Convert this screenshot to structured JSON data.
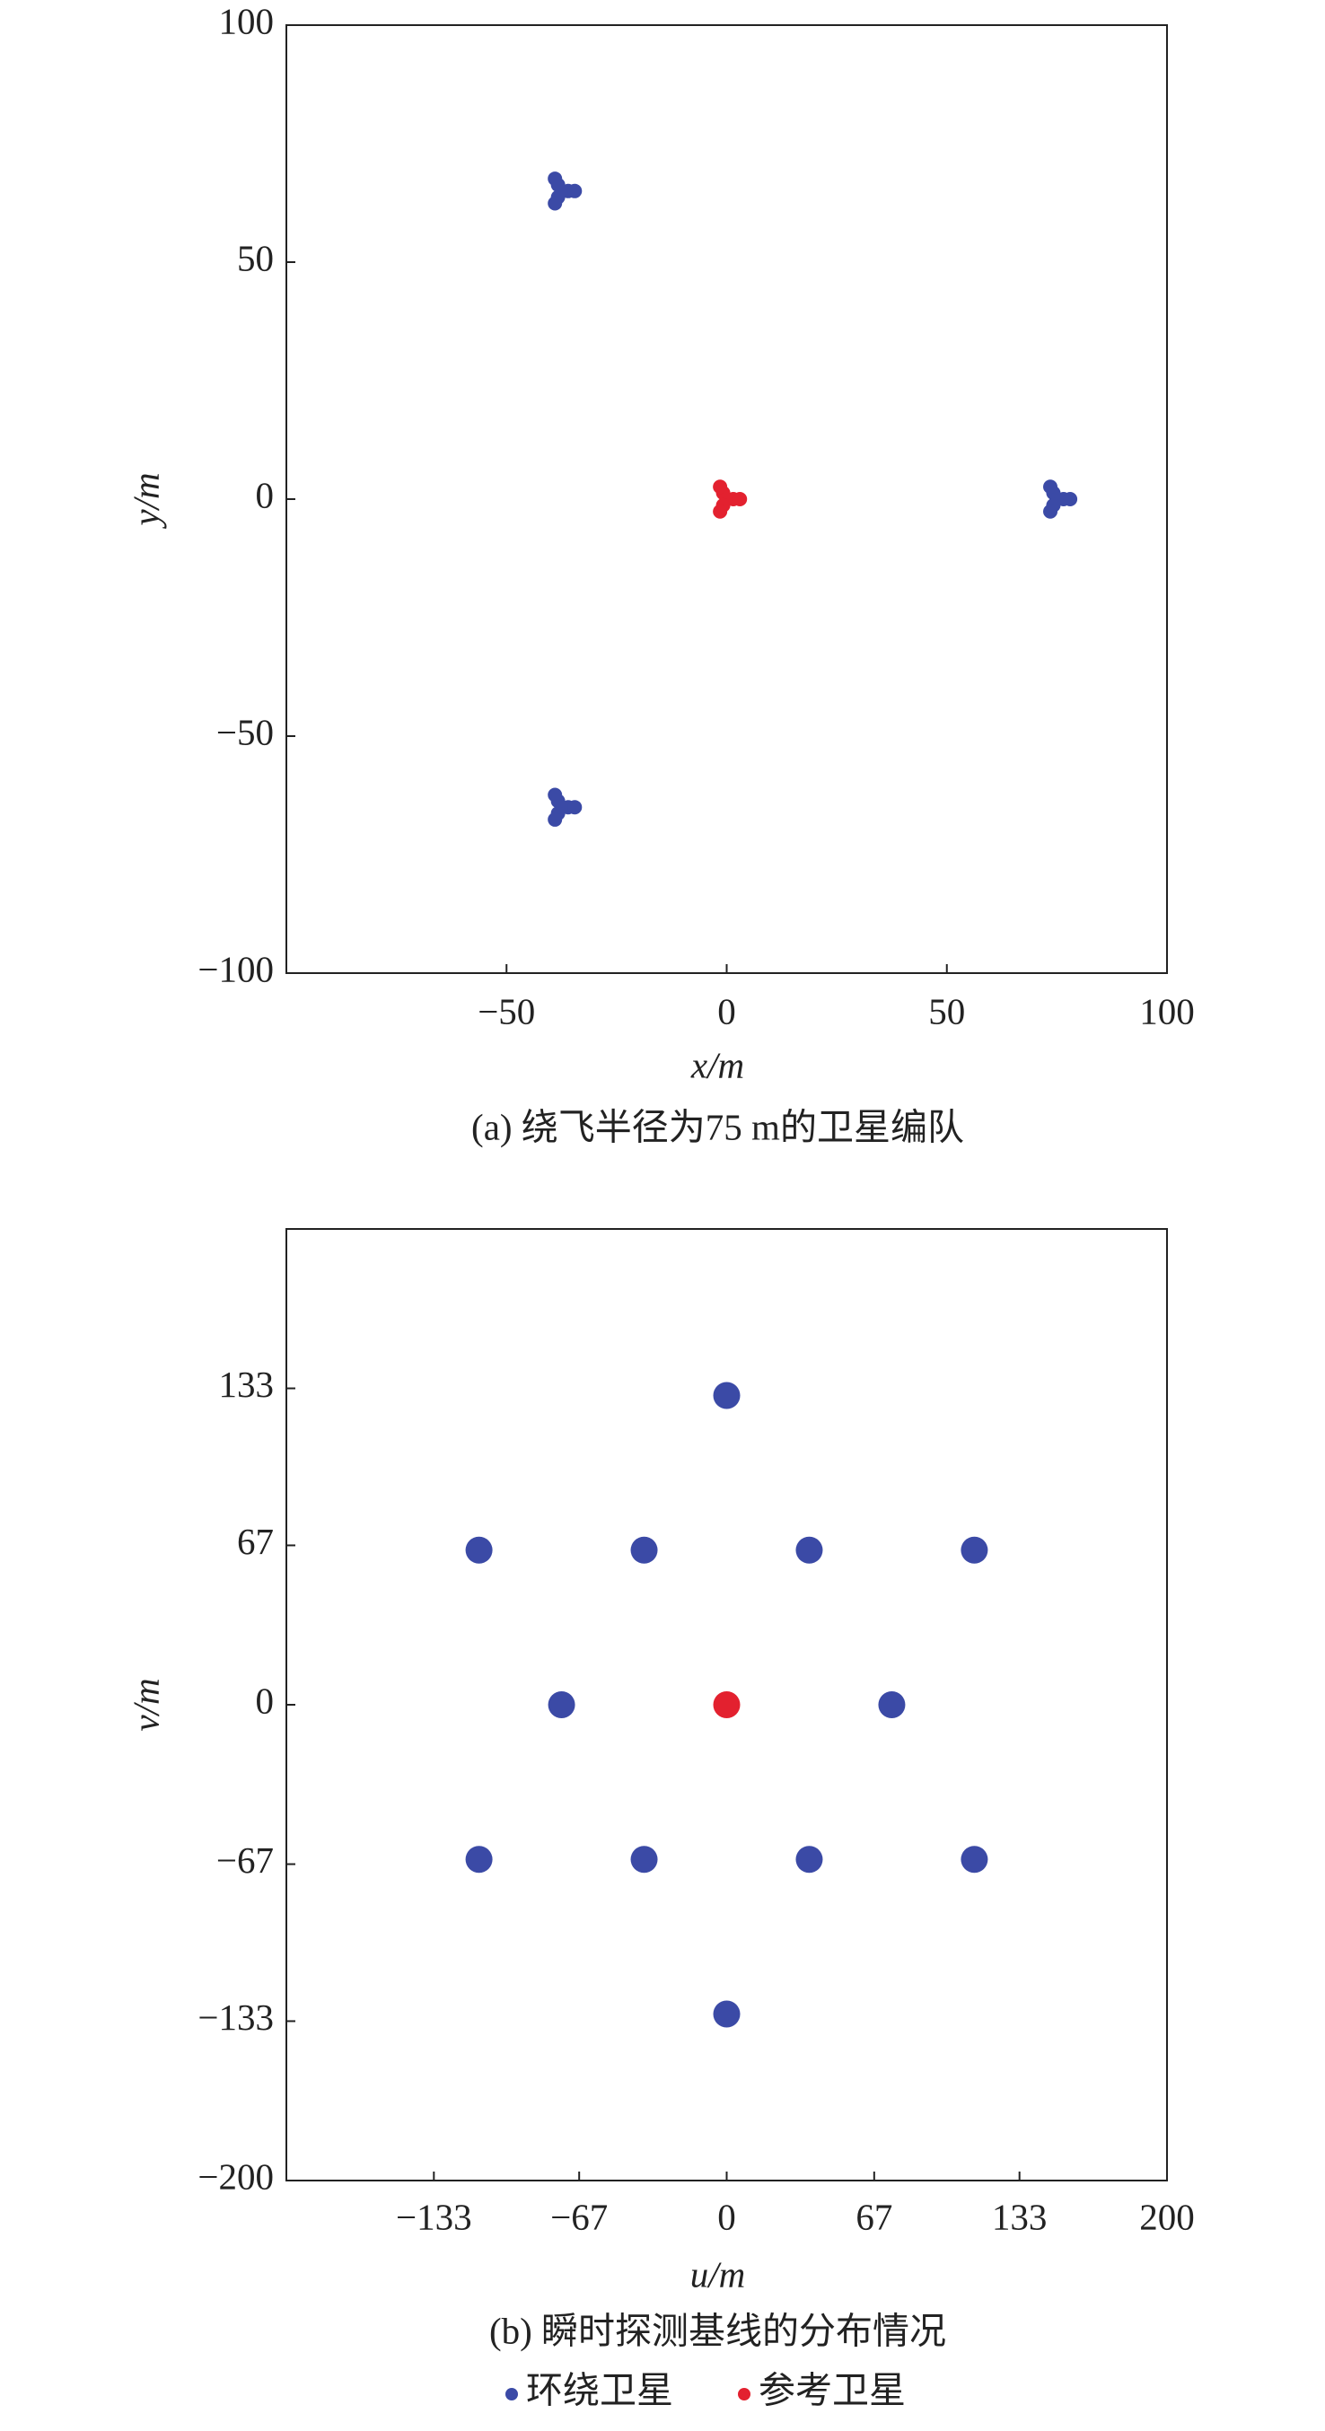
{
  "chart_data": [
    {
      "type": "scatter",
      "title": "(a) 绕飞半径为75 m的卫星编队",
      "xlabel": "x/m",
      "ylabel": "y/m",
      "xlim": [
        -100,
        100
      ],
      "ylim": [
        -100,
        100
      ],
      "xticks": [
        {
          "value": -50,
          "label": "−50"
        },
        0,
        50,
        100
      ],
      "yticks": [
        {
          "value": -100,
          "label": "−100"
        },
        {
          "value": -50,
          "label": "−50"
        },
        0,
        50,
        100
      ],
      "series": [
        {
          "color": "#3b4aa6",
          "x": [
            -37.5,
            -36,
            -34.5,
            -38.3,
            -39,
            -38.3,
            -39,
            75,
            76.5,
            78,
            74.2,
            73.5,
            74.2,
            73.5,
            -37.5,
            -36,
            -34.5,
            -38.3,
            -39,
            -38.3,
            -39
          ],
          "y": [
            65,
            65,
            65,
            66.3,
            67.6,
            63.7,
            62.4,
            0,
            0,
            0,
            1.3,
            2.6,
            -1.3,
            -2.6,
            -65,
            -65,
            -65,
            -63.7,
            -62.4,
            -66.3,
            -67.6
          ]
        },
        {
          "color": "#e3212f",
          "x": [
            0,
            1.5,
            3,
            -0.8,
            -1.5,
            -0.8,
            -1.5
          ],
          "y": [
            0,
            0,
            0,
            1.3,
            2.6,
            -1.3,
            -2.6
          ]
        }
      ]
    },
    {
      "type": "scatter",
      "title": "(b) 瞬时探测基线的分布情况",
      "xlabel": "u/m",
      "ylabel": "v/m",
      "xlim": [
        -200,
        200
      ],
      "ylim": [
        -200,
        200
      ],
      "xticks": [
        {
          "value": -133,
          "label": "−133"
        },
        {
          "value": -67,
          "label": "−67"
        },
        0,
        67,
        133,
        200
      ],
      "yticks": [
        {
          "value": -200,
          "label": "−200"
        },
        {
          "value": -133,
          "label": "−133"
        },
        {
          "value": -67,
          "label": "−67"
        },
        0,
        67,
        133
      ],
      "series": [
        {
          "name": "环绕卫星",
          "color": "#3b4aa6",
          "x": [
            0,
            -112.5,
            -37.5,
            37.5,
            112.5,
            -75,
            75,
            -112.5,
            -37.5,
            37.5,
            112.5,
            0
          ],
          "y": [
            130,
            65,
            65,
            65,
            65,
            0,
            0,
            -65,
            -65,
            -65,
            -65,
            -130
          ]
        },
        {
          "name": "参考卫星",
          "color": "#e3212f",
          "x": [
            0
          ],
          "y": [
            0
          ]
        }
      ]
    }
  ]
}
